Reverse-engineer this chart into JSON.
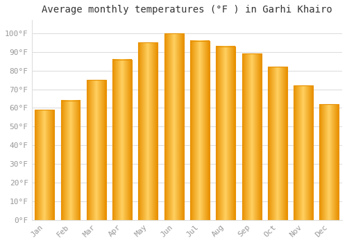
{
  "title": "Average monthly temperatures (°F ) in Garhi Khairo",
  "months": [
    "Jan",
    "Feb",
    "Mar",
    "Apr",
    "May",
    "Jun",
    "Jul",
    "Aug",
    "Sep",
    "Oct",
    "Nov",
    "Dec"
  ],
  "values": [
    59,
    64,
    75,
    86,
    95,
    100,
    96,
    93,
    89,
    82,
    72,
    62
  ],
  "bar_color_center": "#FFD060",
  "bar_color_edge": "#E89000",
  "background_color": "#FFFFFF",
  "plot_bg_color": "#FFFFFF",
  "grid_color": "#DDDDDD",
  "ylim": [
    0,
    107
  ],
  "yticks": [
    0,
    10,
    20,
    30,
    40,
    50,
    60,
    70,
    80,
    90,
    100
  ],
  "ytick_labels": [
    "0°F",
    "10°F",
    "20°F",
    "30°F",
    "40°F",
    "50°F",
    "60°F",
    "70°F",
    "80°F",
    "90°F",
    "100°F"
  ],
  "title_fontsize": 10,
  "tick_fontsize": 8,
  "tick_color": "#999999",
  "title_color": "#333333"
}
